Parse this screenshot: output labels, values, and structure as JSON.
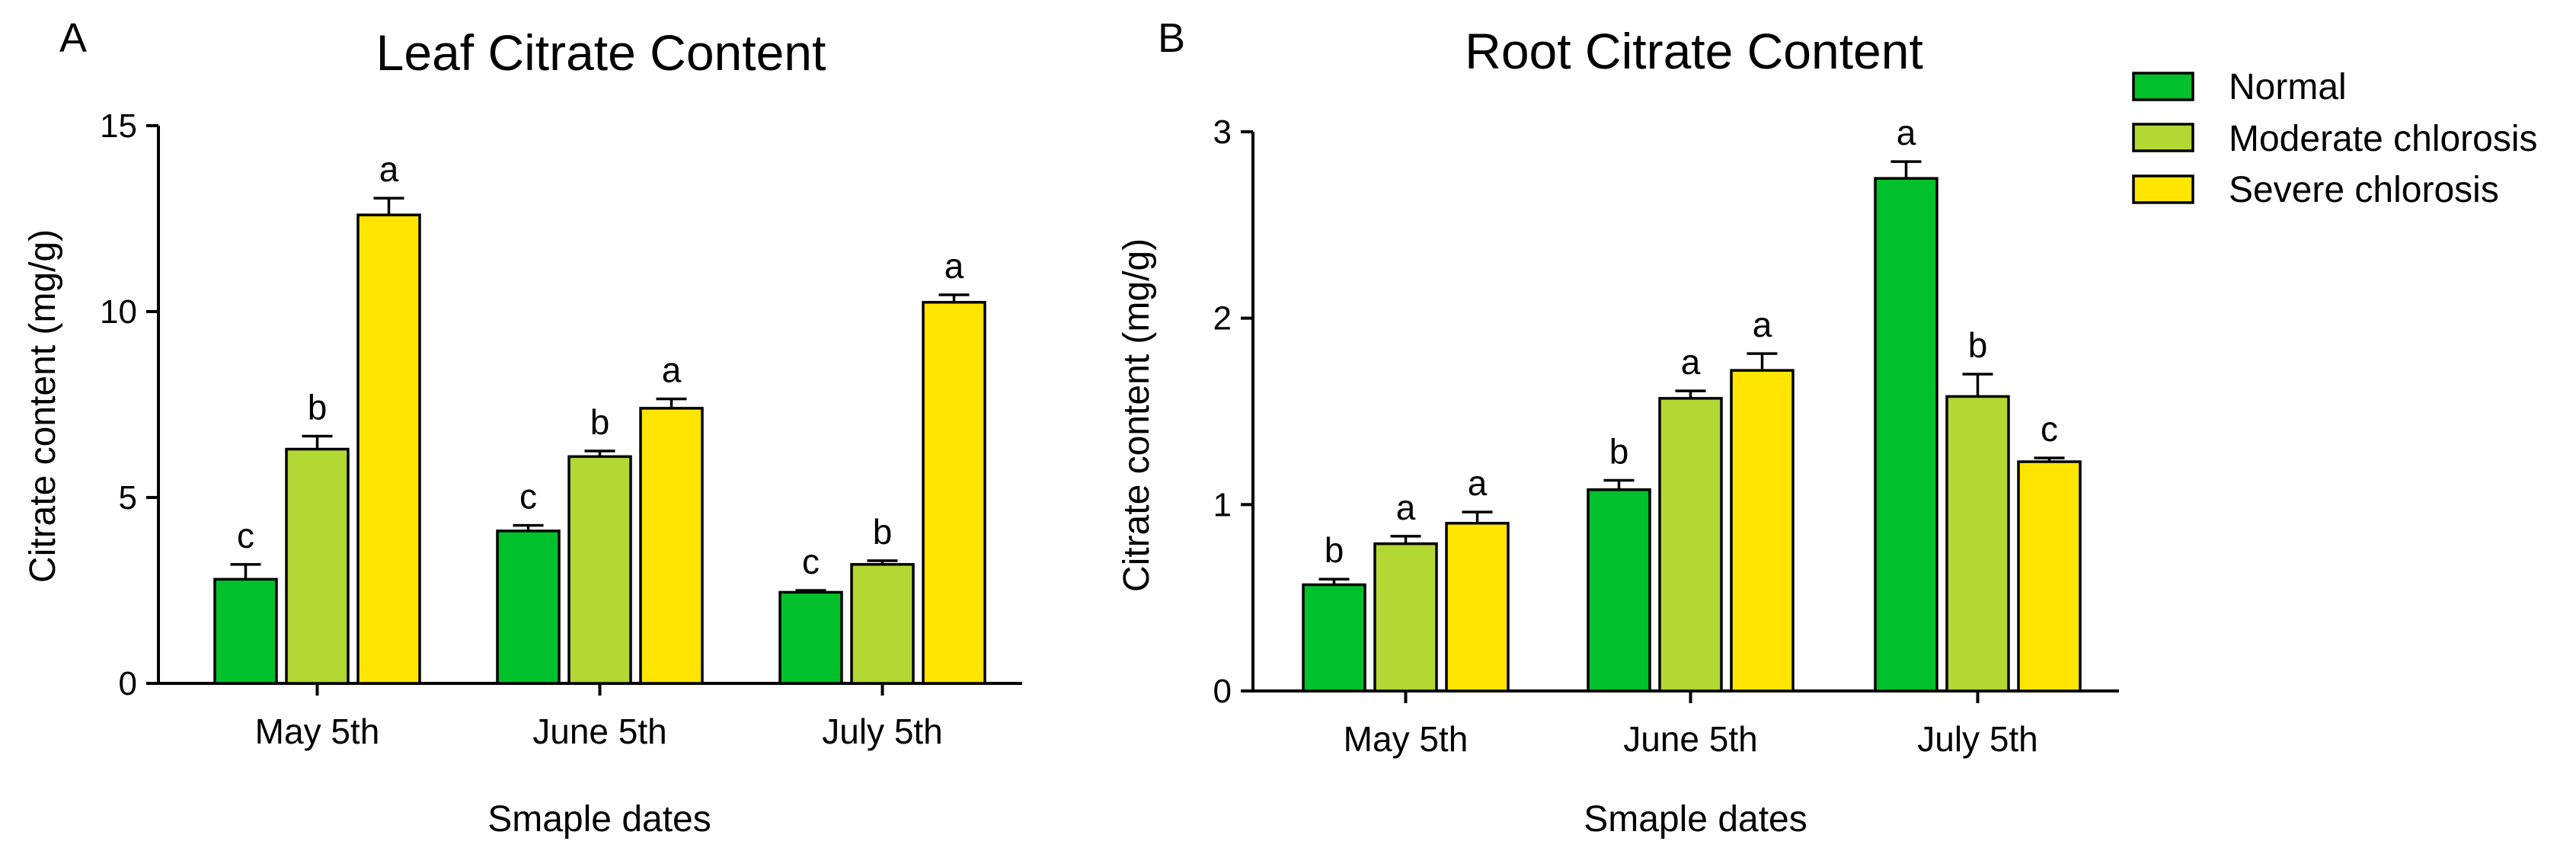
{
  "legend": {
    "items": [
      {
        "name": "Normal",
        "color": "#00c12b"
      },
      {
        "name": "Moderate chlorosis",
        "color": "#b3d733"
      },
      {
        "name": "Severe chlorosis",
        "color": "#ffe500"
      }
    ]
  },
  "chart_data": [
    {
      "type": "bar",
      "panel": "A",
      "title": "Leaf Citrate Content",
      "xlabel": "Smaple dates",
      "ylabel": "Citrate content (mg/g)",
      "categories": [
        "May 5th",
        "June 5th",
        "July 5th"
      ],
      "ylim": [
        0,
        15
      ],
      "yticks": [
        0,
        5,
        10,
        15
      ],
      "series": [
        {
          "name": "Normal",
          "values": [
            2.8,
            4.1,
            2.45
          ],
          "errors": [
            0.4,
            0.15,
            0.05
          ],
          "labels": [
            "c",
            "c",
            "c"
          ]
        },
        {
          "name": "Moderate chlorosis",
          "values": [
            6.3,
            6.1,
            3.2
          ],
          "errors": [
            0.35,
            0.15,
            0.1
          ],
          "labels": [
            "b",
            "b",
            "b"
          ]
        },
        {
          "name": "Severe chlorosis",
          "values": [
            12.6,
            7.4,
            10.25
          ],
          "errors": [
            0.45,
            0.25,
            0.2
          ],
          "labels": [
            "a",
            "a",
            "a"
          ]
        }
      ]
    },
    {
      "type": "bar",
      "panel": "B",
      "title": "Root Citrate Content",
      "xlabel": "Smaple dates",
      "ylabel": "Citrate content (mg/g)",
      "categories": [
        "May 5th",
        "June 5th",
        "July 5th"
      ],
      "ylim": [
        0,
        3
      ],
      "yticks": [
        0,
        1,
        2,
        3
      ],
      "series": [
        {
          "name": "Normal",
          "values": [
            0.57,
            1.08,
            2.75
          ],
          "errors": [
            0.03,
            0.05,
            0.09
          ],
          "labels": [
            "b",
            "b",
            "a"
          ]
        },
        {
          "name": "Moderate chlorosis",
          "values": [
            0.79,
            1.57,
            1.58
          ],
          "errors": [
            0.04,
            0.04,
            0.12
          ],
          "labels": [
            "a",
            "a",
            "b"
          ]
        },
        {
          "name": "Severe chlorosis",
          "values": [
            0.9,
            1.72,
            1.23
          ],
          "errors": [
            0.06,
            0.09,
            0.02
          ],
          "labels": [
            "a",
            "a",
            "c"
          ]
        }
      ]
    }
  ]
}
